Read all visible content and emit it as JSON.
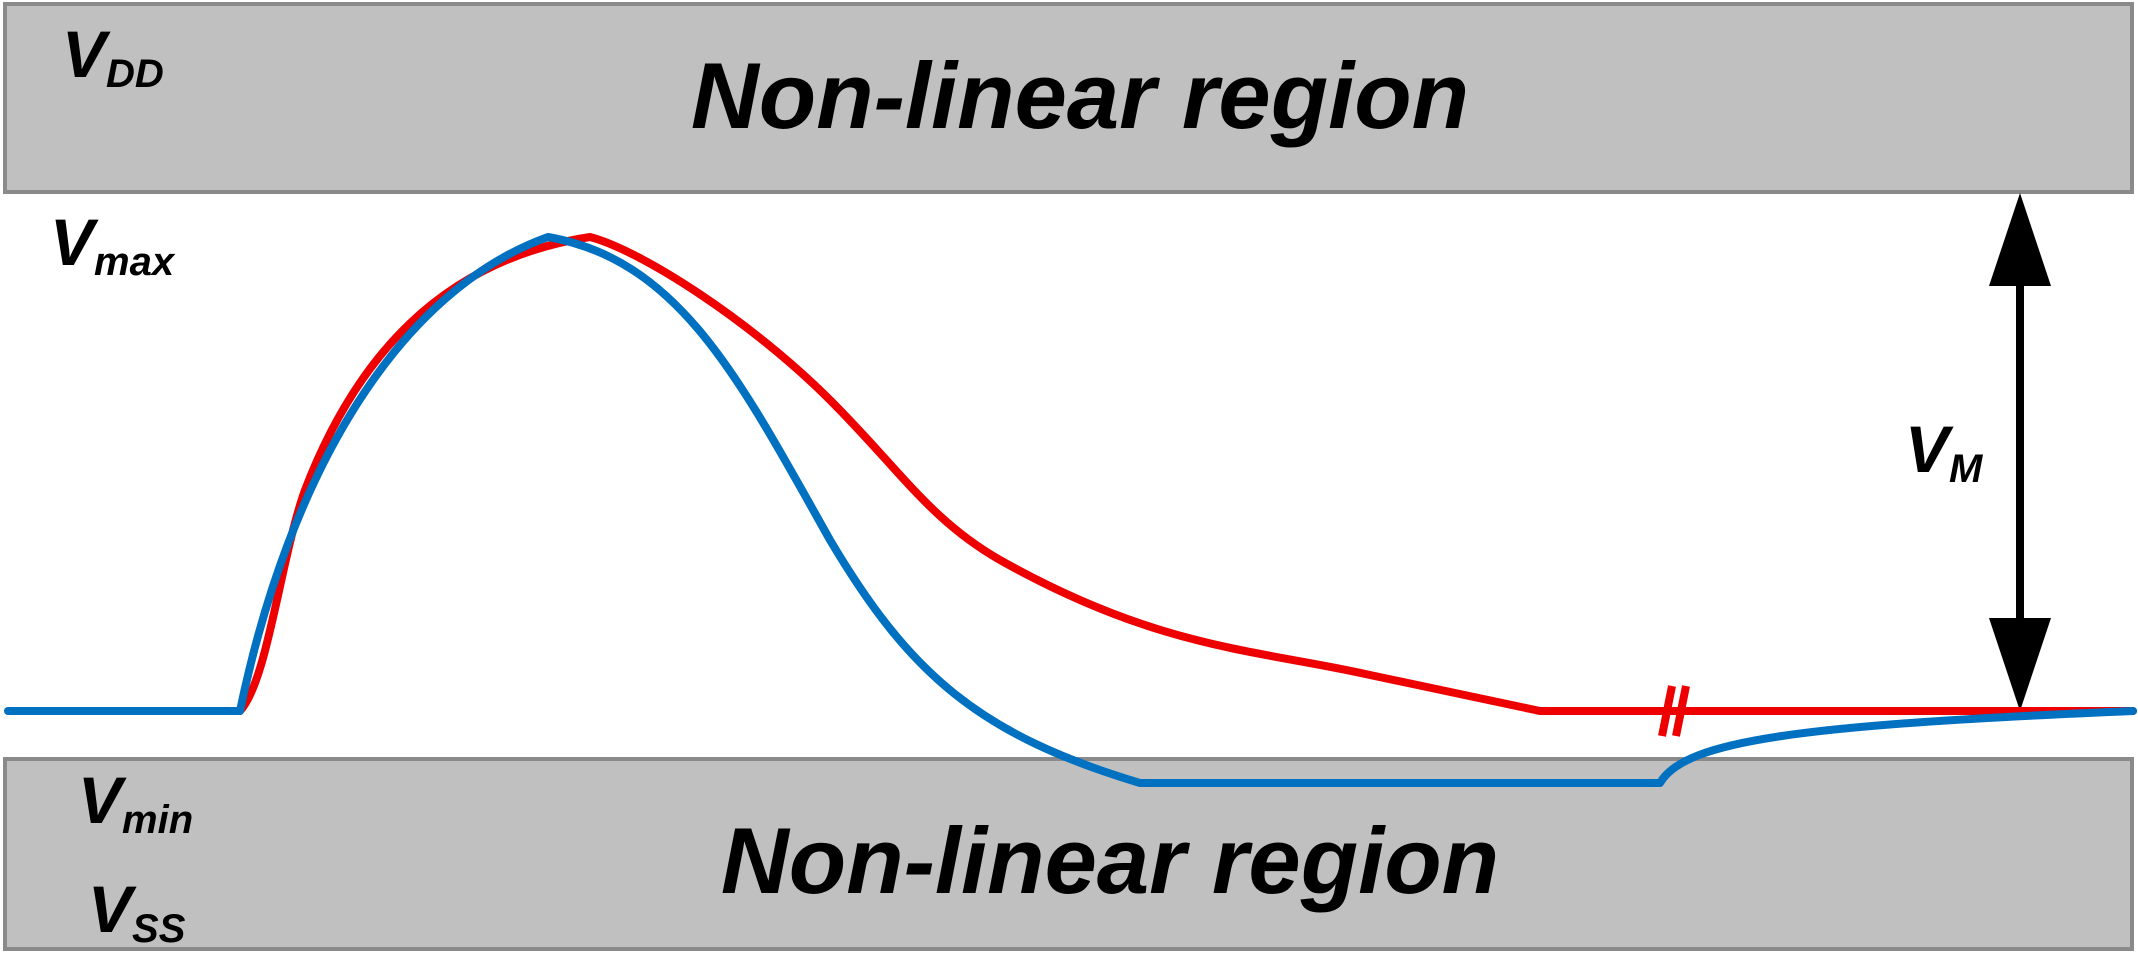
{
  "regions": {
    "top_label": "Non-linear region",
    "bottom_label": "Non-linear region"
  },
  "labels": {
    "vdd": {
      "main": "V",
      "sub": "DD"
    },
    "vmax": {
      "main": "V",
      "sub": "max"
    },
    "vm": {
      "main": "V",
      "sub": "M"
    },
    "vmin": {
      "main": "V",
      "sub": "min"
    },
    "vss": {
      "main": "V",
      "sub": "SS"
    }
  },
  "colors": {
    "region_fill": "#c0c0c0",
    "red_curve": "#ee0000",
    "blue_curve": "#0070c0",
    "arrow": "#000000"
  }
}
